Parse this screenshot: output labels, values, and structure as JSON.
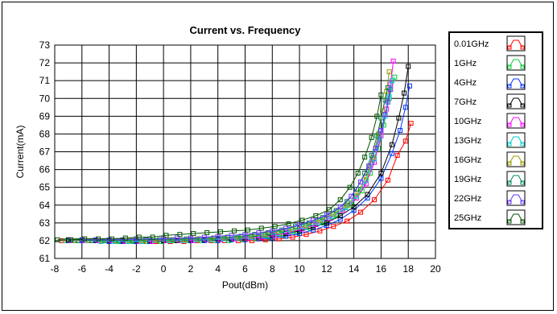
{
  "chart_data": {
    "type": "line",
    "title": "Current vs. Frequency",
    "xlabel": "Pout(dBm)",
    "ylabel": "Current(mA)",
    "xlim": [
      -8,
      20
    ],
    "ylim": [
      61,
      73
    ],
    "xticks": [
      -8,
      -6,
      -4,
      -2,
      0,
      2,
      4,
      6,
      8,
      10,
      12,
      14,
      16,
      18,
      20
    ],
    "yticks": [
      61,
      62,
      63,
      64,
      65,
      66,
      67,
      68,
      69,
      70,
      71,
      72,
      73
    ],
    "grid": true,
    "legend_position": "right",
    "series": [
      {
        "name": "0.01GHz",
        "color": "#ff0000",
        "x": [
          -7.5,
          -6.5,
          -5.5,
          -4.5,
          -3.5,
          -2.5,
          -1.5,
          -0.5,
          0.5,
          1.5,
          2.5,
          3.5,
          4.5,
          5.5,
          6.5,
          7.5,
          8.5,
          9.5,
          10.5,
          11.5,
          12.5,
          13.5,
          14.5,
          15.5,
          16.5,
          17.2,
          17.8,
          18.2
        ],
        "y": [
          62.0,
          62.0,
          62.0,
          62.0,
          62.0,
          62.0,
          61.95,
          61.95,
          61.95,
          61.95,
          62.0,
          62.0,
          62.0,
          62.0,
          62.0,
          62.05,
          62.1,
          62.2,
          62.35,
          62.55,
          62.8,
          63.1,
          63.6,
          64.3,
          65.4,
          66.8,
          67.6,
          68.6
        ]
      },
      {
        "name": "1GHz",
        "color": "#00cc33",
        "x": [
          -7.2,
          -6.2,
          -5.2,
          -4.2,
          -3.2,
          -2.2,
          -1.2,
          -0.2,
          0.8,
          1.8,
          2.8,
          3.8,
          4.8,
          5.8,
          6.8,
          7.8,
          8.8,
          9.8,
          10.8,
          11.8,
          12.8,
          13.8,
          14.6,
          15.2,
          15.8,
          16.2,
          16.6,
          17.0
        ],
        "y": [
          62.0,
          62.0,
          62.0,
          62.0,
          61.95,
          61.95,
          61.95,
          61.95,
          62.0,
          62.0,
          62.0,
          62.0,
          62.0,
          62.05,
          62.1,
          62.2,
          62.3,
          62.45,
          62.7,
          63.0,
          63.4,
          64.0,
          64.8,
          65.8,
          67.2,
          68.5,
          70.0,
          71.2
        ]
      },
      {
        "name": "4GHz",
        "color": "#0033ff",
        "x": [
          -7.0,
          -6.0,
          -5.0,
          -4.0,
          -3.0,
          -2.0,
          -1.0,
          0.0,
          1.0,
          2.0,
          3.0,
          4.0,
          5.0,
          6.0,
          7.0,
          8.0,
          9.0,
          10.0,
          11.0,
          12.0,
          13.0,
          14.0,
          15.0,
          16.0,
          16.8,
          17.4,
          17.8,
          18.1
        ],
        "y": [
          62.0,
          62.0,
          62.0,
          61.95,
          61.95,
          61.95,
          61.95,
          62.0,
          62.0,
          62.0,
          62.0,
          62.0,
          62.05,
          62.05,
          62.1,
          62.15,
          62.25,
          62.4,
          62.6,
          62.85,
          63.2,
          63.7,
          64.4,
          65.5,
          66.9,
          68.2,
          69.5,
          70.7
        ]
      },
      {
        "name": "7GHz",
        "color": "#000000",
        "x": [
          -7.0,
          -6.0,
          -5.0,
          -4.0,
          -3.0,
          -2.0,
          -1.0,
          0.0,
          1.0,
          2.0,
          3.0,
          4.0,
          5.0,
          6.0,
          7.0,
          8.0,
          9.0,
          10.0,
          11.0,
          12.0,
          13.0,
          14.0,
          15.0,
          16.0,
          16.8,
          17.3,
          17.7,
          18.0
        ],
        "y": [
          62.05,
          62.05,
          62.0,
          62.0,
          62.0,
          62.0,
          62.0,
          62.0,
          62.0,
          62.05,
          62.05,
          62.1,
          62.1,
          62.15,
          62.2,
          62.3,
          62.4,
          62.55,
          62.75,
          63.0,
          63.4,
          63.9,
          64.6,
          65.8,
          67.4,
          68.9,
          70.3,
          71.8
        ]
      },
      {
        "name": "10GHz",
        "color": "#ff00ff",
        "x": [
          -6.8,
          -5.8,
          -4.8,
          -3.8,
          -2.8,
          -1.8,
          -0.8,
          0.2,
          1.2,
          2.2,
          3.2,
          4.2,
          5.2,
          6.2,
          7.2,
          8.2,
          9.2,
          10.2,
          11.2,
          12.2,
          13.2,
          14.2,
          14.9,
          15.5,
          16.0,
          16.4,
          16.7,
          16.9
        ],
        "y": [
          62.0,
          62.0,
          62.0,
          62.0,
          61.95,
          61.95,
          61.95,
          62.0,
          62.0,
          62.0,
          62.05,
          62.05,
          62.1,
          62.15,
          62.2,
          62.3,
          62.45,
          62.65,
          62.9,
          63.25,
          63.7,
          64.4,
          65.2,
          66.4,
          67.9,
          69.4,
          70.8,
          72.1
        ]
      },
      {
        "name": "13GHz",
        "color": "#00cccc",
        "x": [
          -6.6,
          -5.6,
          -4.6,
          -3.6,
          -2.6,
          -1.6,
          -0.6,
          0.4,
          1.4,
          2.4,
          3.4,
          4.4,
          5.4,
          6.4,
          7.4,
          8.4,
          9.4,
          10.4,
          11.4,
          12.4,
          13.4,
          14.2,
          14.9,
          15.5,
          15.9,
          16.3,
          16.6,
          16.8
        ],
        "y": [
          62.0,
          62.0,
          61.95,
          61.95,
          61.95,
          61.95,
          62.0,
          62.0,
          62.0,
          62.05,
          62.05,
          62.1,
          62.15,
          62.2,
          62.3,
          62.4,
          62.55,
          62.75,
          63.0,
          63.35,
          63.85,
          64.5,
          65.4,
          66.6,
          67.8,
          69.0,
          70.1,
          71.0
        ]
      },
      {
        "name": "16GHz",
        "color": "#999900",
        "x": [
          -6.5,
          -5.5,
          -4.5,
          -3.5,
          -2.5,
          -1.5,
          -0.5,
          0.5,
          1.5,
          2.5,
          3.5,
          4.5,
          5.5,
          6.5,
          7.5,
          8.5,
          9.5,
          10.5,
          11.5,
          12.5,
          13.5,
          14.3,
          14.9,
          15.4,
          15.8,
          16.1,
          16.4,
          16.6
        ],
        "y": [
          62.0,
          62.0,
          62.0,
          62.0,
          62.0,
          62.0,
          62.0,
          62.05,
          62.05,
          62.1,
          62.1,
          62.15,
          62.2,
          62.25,
          62.35,
          62.5,
          62.65,
          62.85,
          63.15,
          63.5,
          64.0,
          64.7,
          65.6,
          66.7,
          68.0,
          69.3,
          70.4,
          71.5
        ]
      },
      {
        "name": "19GHz",
        "color": "#008855",
        "x": [
          -6.3,
          -5.3,
          -4.3,
          -3.3,
          -2.3,
          -1.3,
          -0.3,
          0.7,
          1.7,
          2.7,
          3.7,
          4.7,
          5.7,
          6.7,
          7.7,
          8.7,
          9.7,
          10.7,
          11.7,
          12.7,
          13.5,
          14.2,
          14.8,
          15.3,
          15.7,
          16.0,
          16.3,
          16.5
        ],
        "y": [
          62.0,
          62.0,
          62.0,
          62.0,
          62.0,
          62.05,
          62.05,
          62.05,
          62.1,
          62.1,
          62.15,
          62.2,
          62.25,
          62.35,
          62.45,
          62.6,
          62.8,
          63.0,
          63.3,
          63.7,
          64.2,
          64.9,
          65.8,
          66.8,
          67.9,
          68.9,
          69.9,
          70.6
        ]
      },
      {
        "name": "22GHz",
        "color": "#6633ff",
        "x": [
          -6.0,
          -5.0,
          -4.0,
          -3.0,
          -2.0,
          -1.0,
          0.0,
          1.0,
          2.0,
          3.0,
          4.0,
          5.0,
          6.0,
          7.0,
          8.0,
          9.0,
          10.0,
          11.0,
          12.0,
          13.0,
          13.8,
          14.5,
          15.1,
          15.6,
          16.0,
          16.3,
          16.5,
          16.7
        ],
        "y": [
          62.05,
          62.05,
          62.05,
          62.05,
          62.1,
          62.1,
          62.1,
          62.15,
          62.15,
          62.2,
          62.25,
          62.3,
          62.35,
          62.45,
          62.55,
          62.7,
          62.9,
          63.15,
          63.45,
          63.9,
          64.5,
          65.3,
          66.2,
          67.2,
          68.2,
          69.1,
          69.8,
          70.5
        ]
      },
      {
        "name": "25GHz",
        "color": "#005500",
        "x": [
          -7.8,
          -6.8,
          -5.8,
          -4.8,
          -3.8,
          -2.8,
          -1.8,
          -0.8,
          0.2,
          1.2,
          2.2,
          3.2,
          4.2,
          5.2,
          6.2,
          7.2,
          8.2,
          9.2,
          10.2,
          11.2,
          12.2,
          13.0,
          13.7,
          14.3,
          14.8,
          15.3,
          15.7,
          16.0
        ],
        "y": [
          62.05,
          62.05,
          62.1,
          62.1,
          62.1,
          62.15,
          62.2,
          62.2,
          62.3,
          62.35,
          62.4,
          62.45,
          62.5,
          62.55,
          62.6,
          62.7,
          62.8,
          62.95,
          63.15,
          63.4,
          63.75,
          64.3,
          65.0,
          65.8,
          66.7,
          67.8,
          69.0,
          70.2
        ]
      }
    ]
  }
}
